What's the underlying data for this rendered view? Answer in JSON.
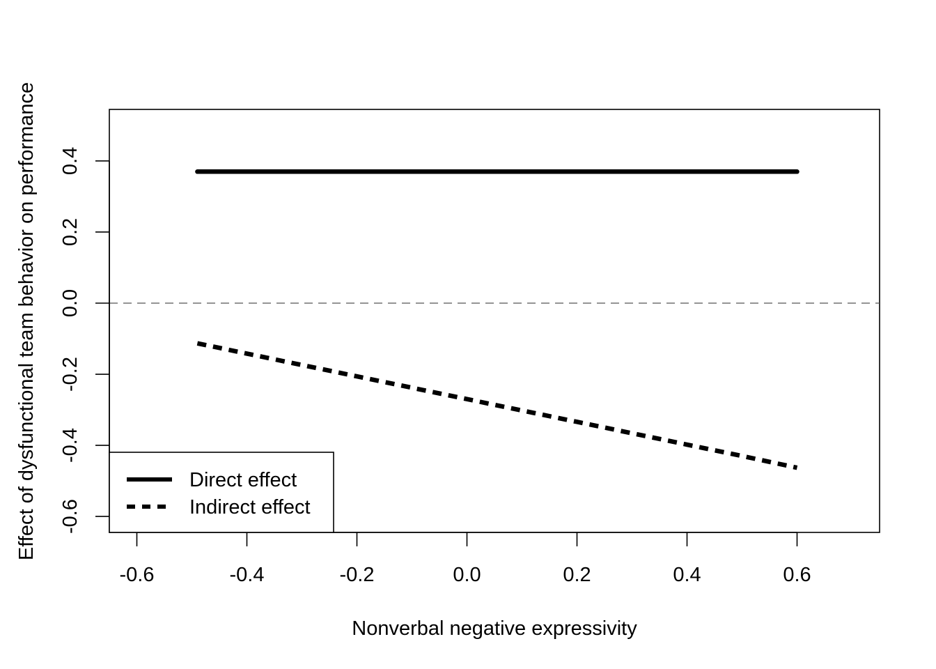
{
  "chart_data": {
    "type": "line",
    "title": "",
    "xlabel": "Nonverbal negative expressivity",
    "ylabel": "Effect of dysfunctional team behavior on performance",
    "xlim": [
      -0.65,
      0.75
    ],
    "ylim": [
      -0.645,
      0.545
    ],
    "xticks": [
      -0.6,
      -0.4,
      -0.2,
      0.0,
      0.2,
      0.4,
      0.6
    ],
    "xtick_labels": [
      "-0.6",
      "-0.4",
      "-0.2",
      "0.0",
      "0.2",
      "0.4",
      "0.6"
    ],
    "yticks": [
      -0.6,
      -0.4,
      -0.2,
      0.0,
      0.2,
      0.4
    ],
    "ytick_labels": [
      "-0.6",
      "-0.4",
      "-0.2",
      "0.0",
      "0.2",
      "0.4"
    ],
    "grid": false,
    "reference_line": {
      "y": 0,
      "style": "dashed"
    },
    "legend_position": "bottom-left",
    "series": [
      {
        "name": "Direct effect",
        "style": "solid",
        "color": "#000000",
        "x": [
          -0.49,
          0.6
        ],
        "y": [
          0.37,
          0.37
        ]
      },
      {
        "name": "Indirect effect",
        "style": "dashed",
        "color": "#000000",
        "x": [
          -0.49,
          -0.4,
          -0.3,
          -0.2,
          -0.1,
          0.0,
          0.1,
          0.2,
          0.3,
          0.4,
          0.5,
          0.6
        ],
        "y": [
          -0.113,
          -0.142,
          -0.174,
          -0.206,
          -0.238,
          -0.27,
          -0.302,
          -0.334,
          -0.366,
          -0.398,
          -0.43,
          -0.463
        ]
      }
    ]
  }
}
